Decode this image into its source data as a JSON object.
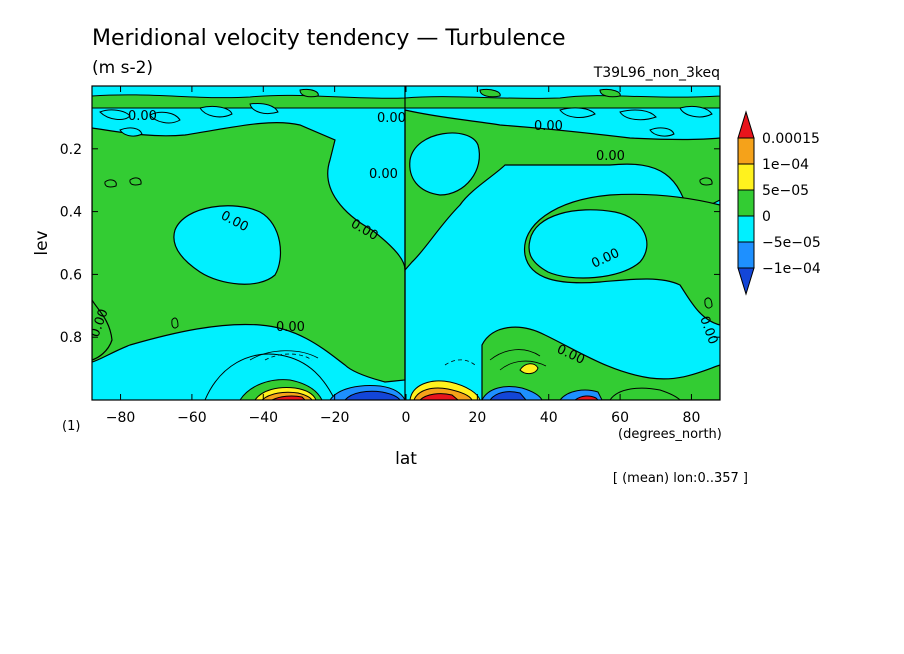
{
  "chart_data": {
    "type": "heatmap",
    "title": "Meridional velocity tendency — Turbulence",
    "units": "(m s-2)",
    "run_label": "T39L96_non_3keq",
    "panel_label": "(1)",
    "xlabel": "lat",
    "x_units": "(degrees_north)",
    "ylabel": "lev",
    "note": "[ (mean) lon:0..357 ]",
    "xlim": [
      -88,
      88
    ],
    "ylim": [
      0.0,
      1.0
    ],
    "y_inverted": true,
    "x_ticks": [
      -80,
      -60,
      -40,
      -20,
      0,
      20,
      40,
      60,
      80
    ],
    "x_tick_labels": [
      "−80",
      "−60",
      "−40",
      "−20",
      "0",
      "20",
      "40",
      "60",
      "80"
    ],
    "y_ticks": [
      0.2,
      0.4,
      0.6,
      0.8
    ],
    "y_tick_labels": [
      "0.2",
      "0.4",
      "0.6",
      "0.8"
    ],
    "contour_labels": [
      "0.00",
      "0.00",
      "0.00",
      "0.00",
      "0.00",
      "0.00",
      "0.00",
      "0.00",
      "0.00",
      "0.00",
      "0.00",
      "0.00"
    ],
    "colorbar": {
      "labels": [
        "0.00015",
        "1e−04",
        "5e−05",
        "0",
        "−5e−05",
        "−1e−04"
      ],
      "colors": [
        "#e8141c",
        "#f5a21a",
        "#fff21e",
        "#33cc33",
        "#00f0ff",
        "#1e90ff",
        "#1346d8"
      ]
    },
    "fill_colors": {
      "positive_small": "#33cc33",
      "negative_small": "#00f0ff",
      "positive_5e5": "#fff21e",
      "positive_1e4": "#f5a21a",
      "positive_15e5": "#e8141c",
      "negative_5e5": "#1e90ff",
      "negative_1e4": "#1346d8"
    }
  }
}
